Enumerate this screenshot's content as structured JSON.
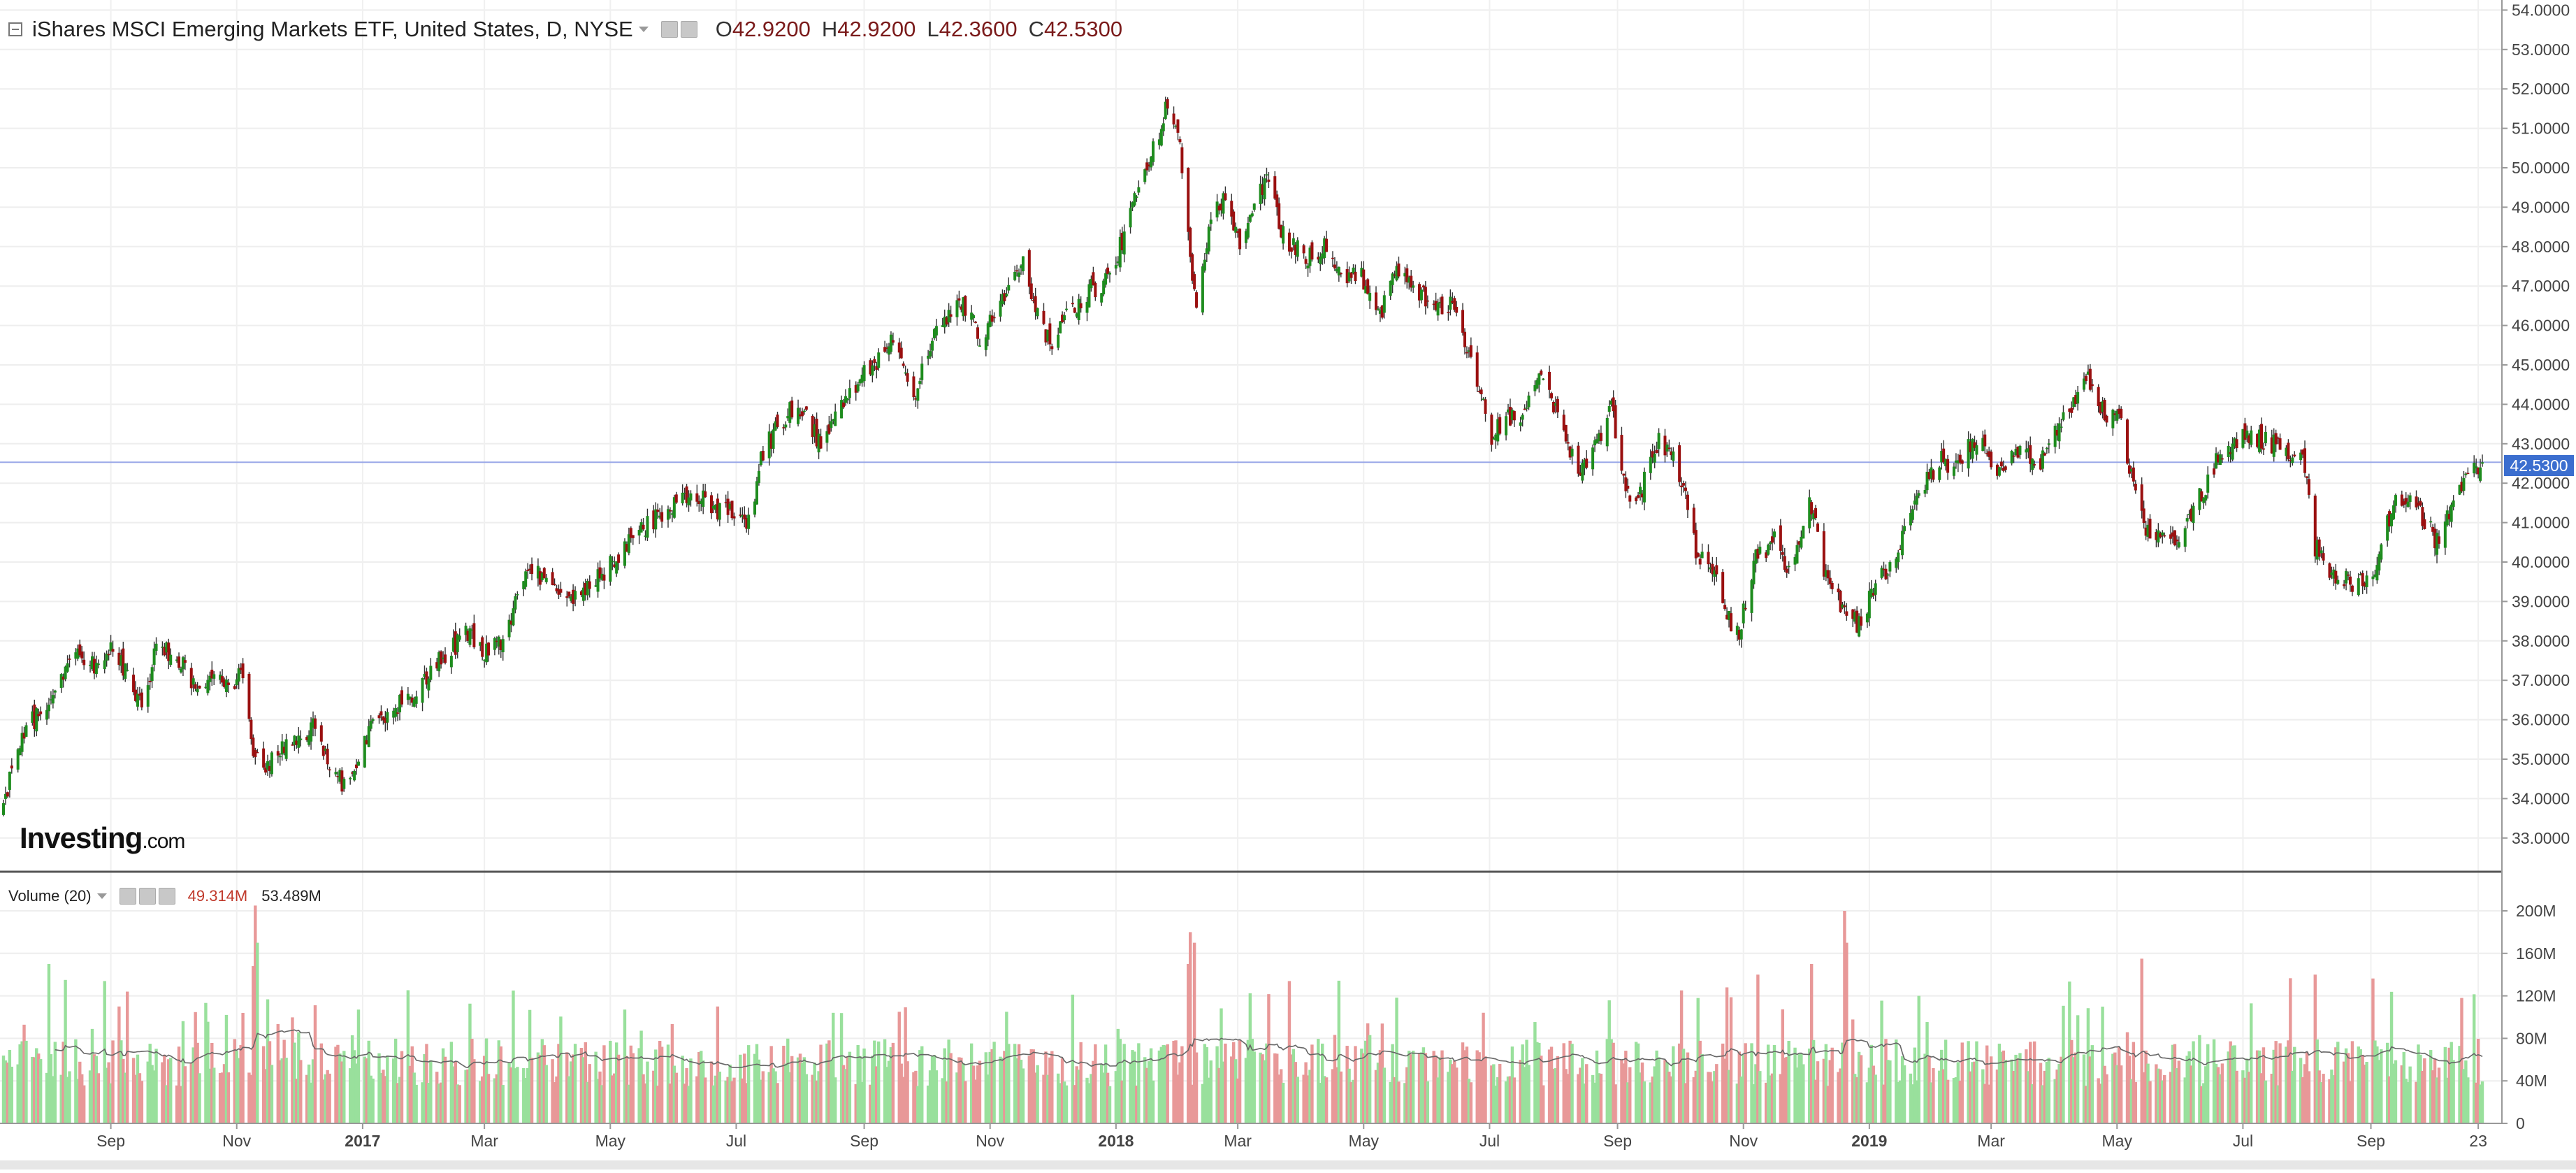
{
  "header": {
    "title": "iShares MSCI Emerging Markets ETF, United States, D, NYSE",
    "ohlc": [
      {
        "key": "O",
        "value": "42.9200"
      },
      {
        "key": "H",
        "value": "42.9200"
      },
      {
        "key": "L",
        "value": "42.3600"
      },
      {
        "key": "C",
        "value": "42.5300"
      }
    ]
  },
  "volume_legend": {
    "name": "Volume (20)",
    "value": "49.314M",
    "ma_value": "53.489M"
  },
  "brand": {
    "main": "Investing",
    "suffix": ".com"
  },
  "last_price_label": "42.5300",
  "colors": {
    "up": "#1e8c1e",
    "down": "#9a1010",
    "vol_up": "#99e09c",
    "vol_down": "#e89898",
    "ma_line": "#666666",
    "price_line": "#9aa8e8",
    "last_price_bg": "#3b6ecf"
  },
  "chart_data": [
    {
      "type": "candlestick",
      "title": "iShares MSCI Emerging Markets ETF, United States, D, NYSE",
      "x_ticks": [
        "Sep",
        "Nov",
        "2017",
        "Mar",
        "May",
        "Jul",
        "Sep",
        "Nov",
        "2018",
        "Mar",
        "May",
        "Jul",
        "Sep",
        "Nov",
        "2019",
        "Mar",
        "May",
        "Jul",
        "Sep",
        "23"
      ],
      "x_range": [
        "2016-07-11",
        "2019-10-25"
      ],
      "ylim": [
        32.5,
        54.2
      ],
      "y_ticks": [
        {
          "value": 33,
          "label": "33.0000"
        },
        {
          "value": 34,
          "label": "34.0000"
        },
        {
          "value": 35,
          "label": "35.0000"
        },
        {
          "value": 36,
          "label": "36.0000"
        },
        {
          "value": 37,
          "label": "37.0000"
        },
        {
          "value": 38,
          "label": "38.0000"
        },
        {
          "value": 39,
          "label": "39.0000"
        },
        {
          "value": 40,
          "label": "40.0000"
        },
        {
          "value": 41,
          "label": "41.0000"
        },
        {
          "value": 42,
          "label": "42.0000"
        },
        {
          "value": 43,
          "label": "43.0000"
        },
        {
          "value": 44,
          "label": "44.0000"
        },
        {
          "value": 45,
          "label": "45.0000"
        },
        {
          "value": 46,
          "label": "46.0000"
        },
        {
          "value": 47,
          "label": "47.0000"
        },
        {
          "value": 48,
          "label": "48.0000"
        },
        {
          "value": 49,
          "label": "49.0000"
        },
        {
          "value": 50,
          "label": "50.0000"
        },
        {
          "value": 51,
          "label": "51.0000"
        },
        {
          "value": 52,
          "label": "52.0000"
        },
        {
          "value": 53,
          "label": "53.0000"
        },
        {
          "value": 54,
          "label": "54.0000"
        }
      ],
      "last_price": 42.53,
      "close_anchors": [
        {
          "d": "2016-07-11",
          "v": 33.8
        },
        {
          "d": "2016-07-18",
          "v": 35.4
        },
        {
          "d": "2016-07-27",
          "v": 36.1
        },
        {
          "d": "2016-08-05",
          "v": 36.6
        },
        {
          "d": "2016-08-12",
          "v": 37.5
        },
        {
          "d": "2016-08-19",
          "v": 37.6
        },
        {
          "d": "2016-08-26",
          "v": 37.3
        },
        {
          "d": "2016-09-02",
          "v": 37.8
        },
        {
          "d": "2016-09-09",
          "v": 37.2
        },
        {
          "d": "2016-09-16",
          "v": 36.3
        },
        {
          "d": "2016-09-23",
          "v": 37.9
        },
        {
          "d": "2016-10-03",
          "v": 37.6
        },
        {
          "d": "2016-10-12",
          "v": 36.8
        },
        {
          "d": "2016-10-21",
          "v": 37.3
        },
        {
          "d": "2016-10-28",
          "v": 36.9
        },
        {
          "d": "2016-11-04",
          "v": 37.2
        },
        {
          "d": "2016-11-09",
          "v": 35.1
        },
        {
          "d": "2016-11-14",
          "v": 34.6
        },
        {
          "d": "2016-11-22",
          "v": 35.3
        },
        {
          "d": "2016-12-01",
          "v": 35.5
        },
        {
          "d": "2016-12-08",
          "v": 35.9
        },
        {
          "d": "2016-12-15",
          "v": 34.9
        },
        {
          "d": "2016-12-22",
          "v": 34.4
        },
        {
          "d": "2016-12-28",
          "v": 34.8
        },
        {
          "d": "2017-01-06",
          "v": 35.9
        },
        {
          "d": "2017-01-17",
          "v": 36.3
        },
        {
          "d": "2017-01-27",
          "v": 36.8
        },
        {
          "d": "2017-02-08",
          "v": 37.6
        },
        {
          "d": "2017-02-22",
          "v": 38.2
        },
        {
          "d": "2017-03-02",
          "v": 37.7
        },
        {
          "d": "2017-03-10",
          "v": 37.9
        },
        {
          "d": "2017-03-20",
          "v": 39.6
        },
        {
          "d": "2017-03-30",
          "v": 39.7
        },
        {
          "d": "2017-04-12",
          "v": 39.1
        },
        {
          "d": "2017-04-21",
          "v": 39.3
        },
        {
          "d": "2017-05-03",
          "v": 40.1
        },
        {
          "d": "2017-05-17",
          "v": 40.8
        },
        {
          "d": "2017-05-31",
          "v": 41.5
        },
        {
          "d": "2017-06-09",
          "v": 41.8
        },
        {
          "d": "2017-06-20",
          "v": 41.4
        },
        {
          "d": "2017-06-29",
          "v": 41.2
        },
        {
          "d": "2017-07-07",
          "v": 41.0
        },
        {
          "d": "2017-07-14",
          "v": 42.8
        },
        {
          "d": "2017-07-26",
          "v": 43.8
        },
        {
          "d": "2017-08-04",
          "v": 43.7
        },
        {
          "d": "2017-08-11",
          "v": 42.9
        },
        {
          "d": "2017-08-22",
          "v": 44.2
        },
        {
          "d": "2017-09-05",
          "v": 45.0
        },
        {
          "d": "2017-09-15",
          "v": 45.7
        },
        {
          "d": "2017-09-26",
          "v": 44.3
        },
        {
          "d": "2017-10-06",
          "v": 45.9
        },
        {
          "d": "2017-10-18",
          "v": 46.6
        },
        {
          "d": "2017-10-27",
          "v": 45.7
        },
        {
          "d": "2017-11-08",
          "v": 46.6
        },
        {
          "d": "2017-11-17",
          "v": 47.7
        },
        {
          "d": "2017-11-24",
          "v": 46.3
        },
        {
          "d": "2017-12-01",
          "v": 45.4
        },
        {
          "d": "2017-12-08",
          "v": 46.3
        },
        {
          "d": "2017-12-19",
          "v": 46.9
        },
        {
          "d": "2017-12-29",
          "v": 47.2
        },
        {
          "d": "2018-01-09",
          "v": 49.0
        },
        {
          "d": "2018-01-19",
          "v": 50.4
        },
        {
          "d": "2018-01-26",
          "v": 51.7
        },
        {
          "d": "2018-01-31",
          "v": 50.9
        },
        {
          "d": "2018-02-05",
          "v": 48.6
        },
        {
          "d": "2018-02-09",
          "v": 46.2
        },
        {
          "d": "2018-02-15",
          "v": 48.6
        },
        {
          "d": "2018-02-23",
          "v": 49.3
        },
        {
          "d": "2018-03-02",
          "v": 48.1
        },
        {
          "d": "2018-03-09",
          "v": 49.2
        },
        {
          "d": "2018-03-16",
          "v": 49.7
        },
        {
          "d": "2018-03-23",
          "v": 48.3
        },
        {
          "d": "2018-04-03",
          "v": 47.7
        },
        {
          "d": "2018-04-13",
          "v": 48.0
        },
        {
          "d": "2018-04-20",
          "v": 47.3
        },
        {
          "d": "2018-04-30",
          "v": 47.2
        },
        {
          "d": "2018-05-09",
          "v": 46.3
        },
        {
          "d": "2018-05-16",
          "v": 47.4
        },
        {
          "d": "2018-05-25",
          "v": 47.0
        },
        {
          "d": "2018-06-04",
          "v": 46.5
        },
        {
          "d": "2018-06-12",
          "v": 46.5
        },
        {
          "d": "2018-06-22",
          "v": 45.3
        },
        {
          "d": "2018-07-02",
          "v": 43.2
        },
        {
          "d": "2018-07-09",
          "v": 43.6
        },
        {
          "d": "2018-07-17",
          "v": 43.8
        },
        {
          "d": "2018-07-26",
          "v": 44.6
        },
        {
          "d": "2018-08-03",
          "v": 43.8
        },
        {
          "d": "2018-08-13",
          "v": 42.3
        },
        {
          "d": "2018-08-22",
          "v": 43.1
        },
        {
          "d": "2018-08-29",
          "v": 43.9
        },
        {
          "d": "2018-09-06",
          "v": 41.6
        },
        {
          "d": "2018-09-13",
          "v": 41.9
        },
        {
          "d": "2018-09-21",
          "v": 43.1
        },
        {
          "d": "2018-10-01",
          "v": 42.3
        },
        {
          "d": "2018-10-09",
          "v": 40.3
        },
        {
          "d": "2018-10-17",
          "v": 39.9
        },
        {
          "d": "2018-10-26",
          "v": 38.5
        },
        {
          "d": "2018-10-30",
          "v": 38.2
        },
        {
          "d": "2018-11-07",
          "v": 40.1
        },
        {
          "d": "2018-11-16",
          "v": 40.6
        },
        {
          "d": "2018-11-23",
          "v": 39.7
        },
        {
          "d": "2018-12-03",
          "v": 41.7
        },
        {
          "d": "2018-12-10",
          "v": 39.8
        },
        {
          "d": "2018-12-20",
          "v": 38.8
        },
        {
          "d": "2018-12-26",
          "v": 38.4
        },
        {
          "d": "2019-01-04",
          "v": 39.4
        },
        {
          "d": "2019-01-14",
          "v": 40.2
        },
        {
          "d": "2019-01-25",
          "v": 41.7
        },
        {
          "d": "2019-02-04",
          "v": 42.6
        },
        {
          "d": "2019-02-11",
          "v": 42.4
        },
        {
          "d": "2019-02-22",
          "v": 43.2
        },
        {
          "d": "2019-03-07",
          "v": 42.2
        },
        {
          "d": "2019-03-15",
          "v": 42.9
        },
        {
          "d": "2019-03-25",
          "v": 42.6
        },
        {
          "d": "2019-04-04",
          "v": 43.6
        },
        {
          "d": "2019-04-17",
          "v": 44.6
        },
        {
          "d": "2019-04-25",
          "v": 43.7
        },
        {
          "d": "2019-05-03",
          "v": 43.6
        },
        {
          "d": "2019-05-09",
          "v": 41.8
        },
        {
          "d": "2019-05-17",
          "v": 40.6
        },
        {
          "d": "2019-05-24",
          "v": 40.6
        },
        {
          "d": "2019-05-31",
          "v": 40.5
        },
        {
          "d": "2019-06-10",
          "v": 41.6
        },
        {
          "d": "2019-06-20",
          "v": 42.8
        },
        {
          "d": "2019-07-03",
          "v": 43.2
        },
        {
          "d": "2019-07-17",
          "v": 43.0
        },
        {
          "d": "2019-07-31",
          "v": 42.5
        },
        {
          "d": "2019-08-05",
          "v": 40.4
        },
        {
          "d": "2019-08-14",
          "v": 39.7
        },
        {
          "d": "2019-08-23",
          "v": 39.4
        },
        {
          "d": "2019-09-03",
          "v": 39.8
        },
        {
          "d": "2019-09-13",
          "v": 41.7
        },
        {
          "d": "2019-09-24",
          "v": 41.3
        },
        {
          "d": "2019-10-03",
          "v": 40.5
        },
        {
          "d": "2019-10-11",
          "v": 41.4
        },
        {
          "d": "2019-10-18",
          "v": 42.1
        },
        {
          "d": "2019-10-25",
          "v": 42.53
        }
      ]
    },
    {
      "type": "bar",
      "title": "Volume (20)",
      "ylim": [
        0,
        210
      ],
      "y_unit": "M",
      "y_ticks": [
        {
          "value": 0,
          "label": "0"
        },
        {
          "value": 40,
          "label": "40M"
        },
        {
          "value": 80,
          "label": "80M"
        },
        {
          "value": 120,
          "label": "120M"
        },
        {
          "value": 160,
          "label": "160M"
        },
        {
          "value": 200,
          "label": "200M"
        }
      ],
      "moving_average_period": 20,
      "typical_volume_range": [
        20,
        120
      ],
      "volume_spikes": [
        {
          "d": "2016-08-02",
          "v": 150
        },
        {
          "d": "2016-08-10",
          "v": 135
        },
        {
          "d": "2016-09-09",
          "v": 124
        },
        {
          "d": "2016-11-09",
          "v": 148
        },
        {
          "d": "2016-11-10",
          "v": 205
        },
        {
          "d": "2016-11-11",
          "v": 170
        },
        {
          "d": "2017-03-15",
          "v": 125
        },
        {
          "d": "2017-06-22",
          "v": 110
        },
        {
          "d": "2017-09-18",
          "v": 105
        },
        {
          "d": "2017-11-09",
          "v": 105
        },
        {
          "d": "2018-02-05",
          "v": 150
        },
        {
          "d": "2018-02-06",
          "v": 180
        },
        {
          "d": "2018-02-08",
          "v": 170
        },
        {
          "d": "2018-10-10",
          "v": 118
        },
        {
          "d": "2018-10-24",
          "v": 128
        },
        {
          "d": "2018-11-08",
          "v": 140
        },
        {
          "d": "2018-12-04",
          "v": 150
        },
        {
          "d": "2018-12-20",
          "v": 200
        },
        {
          "d": "2018-12-21",
          "v": 170
        },
        {
          "d": "2019-05-13",
          "v": 155
        },
        {
          "d": "2019-08-05",
          "v": 140
        }
      ]
    }
  ]
}
